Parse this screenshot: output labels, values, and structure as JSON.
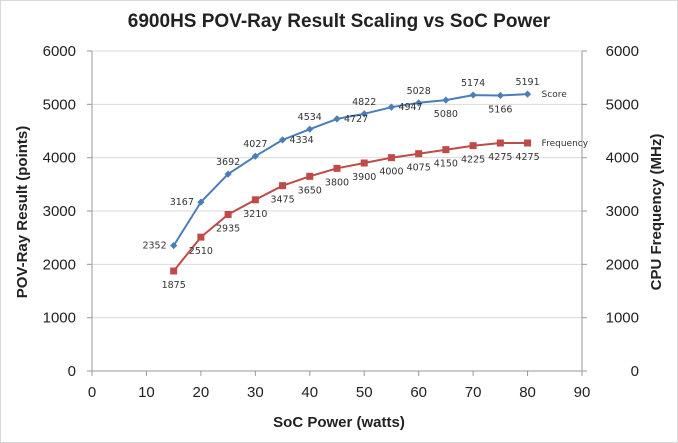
{
  "chart_data": {
    "type": "line",
    "title": "6900HS POV-Ray Result Scaling vs SoC Power",
    "xlabel": "SoC Power (watts)",
    "ylabel": "POV-Ray Result (points)",
    "y2label": "CPU Frequency (MHz)",
    "xlim": [
      0,
      90
    ],
    "xticks": [
      0,
      10,
      20,
      30,
      40,
      50,
      60,
      70,
      80,
      90
    ],
    "ylim": [
      0,
      6000
    ],
    "yticks": [
      0,
      1000,
      2000,
      3000,
      4000,
      5000,
      6000
    ],
    "y2lim": [
      0,
      6000
    ],
    "y2ticks": [
      0,
      1000,
      2000,
      3000,
      4000,
      5000,
      6000
    ],
    "grid": "horizontal",
    "x": [
      15,
      20,
      25,
      30,
      35,
      40,
      45,
      50,
      55,
      60,
      65,
      70,
      75,
      80
    ],
    "series": [
      {
        "name": "Score",
        "axis": "left",
        "color": "#4a7ebb",
        "marker": "diamond",
        "values": [
          2352,
          3167,
          3692,
          4027,
          4334,
          4534,
          4727,
          4822,
          4947,
          5028,
          5080,
          5174,
          5166,
          5191
        ],
        "label_positions": [
          "left",
          "left",
          "above",
          "above",
          "right",
          "above",
          "right",
          "above",
          "right",
          "above",
          "below",
          "above",
          "below",
          "above"
        ]
      },
      {
        "name": "Frequency",
        "axis": "right",
        "color": "#be4b48",
        "marker": "square",
        "values": [
          1875,
          2510,
          2935,
          3210,
          3475,
          3650,
          3800,
          3900,
          4000,
          4075,
          4150,
          4225,
          4275,
          4275
        ],
        "label_positions": [
          "below",
          "below",
          "below",
          "below",
          "below",
          "below",
          "below",
          "below",
          "below",
          "below",
          "below",
          "below",
          "below",
          "below"
        ]
      }
    ]
  }
}
